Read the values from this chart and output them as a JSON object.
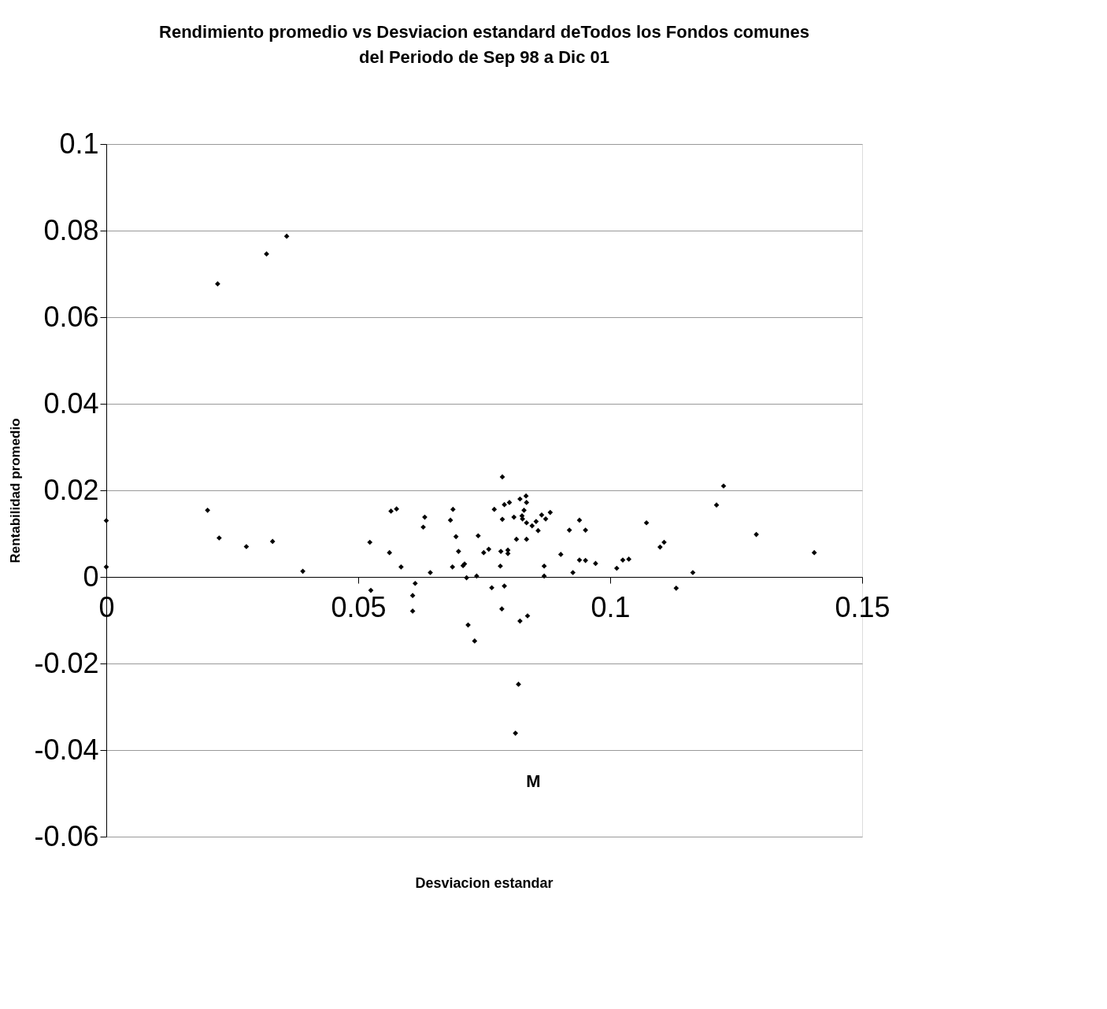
{
  "chart_data": {
    "type": "scatter",
    "title": "Rendimiento promedio vs Desviacion estandard deTodos los  Fondos comunes del Periodo de Sep 98 a Dic 01",
    "xlabel": "Desviacion estandar",
    "ylabel": "Rentabilidad promedio",
    "x": [
      0,
      0,
      0.0201,
      0.0224,
      0.0278,
      0.033,
      0.039,
      0.0221,
      0.0318,
      0.0358,
      0.0786,
      0.0523,
      0.0565,
      0.0576,
      0.0562,
      0.0585,
      0.0632,
      0.0629,
      0.0643,
      0.0613,
      0.0525,
      0.0608,
      0.0608,
      0.0688,
      0.0683,
      0.0694,
      0.0699,
      0.0687,
      0.0708,
      0.0711,
      0.0715,
      0.0735,
      0.0738,
      0.0749,
      0.0759,
      0.0765,
      0.0718,
      0.0731,
      0.077,
      0.0786,
      0.079,
      0.08,
      0.0783,
      0.0797,
      0.0797,
      0.0782,
      0.079,
      0.0785,
      0.0821,
      0.0833,
      0.0834,
      0.0809,
      0.0825,
      0.0826,
      0.0829,
      0.0834,
      0.0845,
      0.0853,
      0.0857,
      0.0864,
      0.0872,
      0.0881,
      0.0814,
      0.0834,
      0.0869,
      0.0869,
      0.0821,
      0.0836,
      0.0902,
      0.0919,
      0.0926,
      0.0818,
      0.0812,
      0.0939,
      0.0951,
      0.0939,
      0.0951,
      0.0971,
      0.1013,
      0.1025,
      0.1037,
      0.1072,
      0.1099,
      0.1107,
      0.1131,
      0.1164,
      0.1211,
      0.1225,
      0.129,
      0.1405
    ],
    "values": [
      0.013,
      0.0023,
      0.0154,
      0.009,
      0.007,
      0.0082,
      0.0013,
      0.0677,
      0.0746,
      0.0787,
      0.0231,
      0.008,
      0.0152,
      0.0157,
      0.0056,
      0.0023,
      0.0138,
      0.0115,
      0.001,
      -0.0015,
      -0.0031,
      -0.0043,
      -0.0079,
      0.0156,
      0.0131,
      0.0093,
      0.0059,
      0.0023,
      0.0026,
      0.003,
      -0.0002,
      0.0002,
      0.0095,
      0.0056,
      0.0064,
      -0.0025,
      -0.0111,
      -0.0148,
      0.0156,
      0.0133,
      0.0167,
      0.0172,
      0.0059,
      0.0062,
      0.0054,
      0.0025,
      -0.0021,
      -0.0074,
      0.018,
      0.0187,
      0.0172,
      0.0138,
      0.0141,
      0.0134,
      0.0154,
      0.0125,
      0.0118,
      0.0128,
      0.0107,
      0.0143,
      0.0134,
      0.0149,
      0.0087,
      0.0087,
      0.0025,
      0.0002,
      -0.0102,
      -0.009,
      0.0052,
      0.0108,
      0.001,
      -0.0248,
      -0.0361,
      0.0131,
      0.0108,
      0.0039,
      0.0038,
      0.0031,
      0.002,
      0.0039,
      0.0041,
      0.0125,
      0.0069,
      0.008,
      -0.0026,
      0.001,
      0.0166,
      0.021,
      0.0098,
      0.0056
    ],
    "color": "#000000",
    "marker": "diamond",
    "xlim": [
      0,
      0.15
    ],
    "xticks": [
      0,
      0.05,
      0.1,
      0.15
    ],
    "ylim": [
      -0.06,
      0.1
    ],
    "yticks": [
      -0.06,
      -0.04,
      -0.02,
      0,
      0.02,
      0.04,
      0.06,
      0.08,
      0.1
    ],
    "grid": "y",
    "annotations": [
      "M"
    ]
  }
}
